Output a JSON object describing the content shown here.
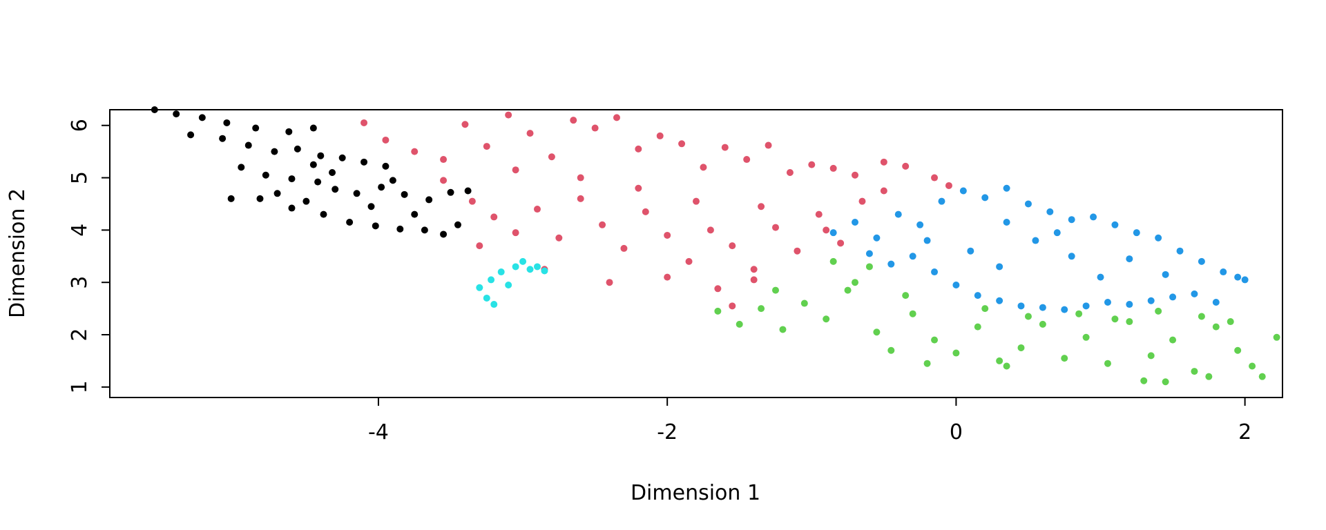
{
  "chart_data": {
    "type": "scatter",
    "title": "",
    "xlabel": "Dimension 1",
    "ylabel": "Dimension 2",
    "xlim": [
      -5.86,
      2.26
    ],
    "ylim": [
      0.8,
      6.3
    ],
    "x_ticks": [
      -4,
      -2,
      0,
      2
    ],
    "x_tick_labels": [
      "-4",
      "-2",
      "0",
      "2"
    ],
    "y_ticks": [
      1,
      2,
      3,
      4,
      5,
      6
    ],
    "y_tick_labels": [
      "1",
      "2",
      "3",
      "4",
      "5",
      "6"
    ],
    "grid": false,
    "legend": "none",
    "series": [
      {
        "color": "#000000",
        "points": [
          [
            -5.55,
            6.3
          ],
          [
            -5.4,
            6.22
          ],
          [
            -5.22,
            6.15
          ],
          [
            -5.05,
            6.05
          ],
          [
            -4.85,
            5.95
          ],
          [
            -4.62,
            5.88
          ],
          [
            -4.45,
            5.95
          ],
          [
            -5.3,
            5.82
          ],
          [
            -5.08,
            5.75
          ],
          [
            -4.9,
            5.62
          ],
          [
            -4.72,
            5.5
          ],
          [
            -4.56,
            5.55
          ],
          [
            -4.4,
            5.42
          ],
          [
            -4.25,
            5.38
          ],
          [
            -4.1,
            5.3
          ],
          [
            -3.95,
            5.22
          ],
          [
            -4.95,
            5.2
          ],
          [
            -4.78,
            5.05
          ],
          [
            -4.6,
            4.98
          ],
          [
            -4.42,
            4.92
          ],
          [
            -4.3,
            4.78
          ],
          [
            -4.15,
            4.7
          ],
          [
            -3.98,
            4.82
          ],
          [
            -3.82,
            4.68
          ],
          [
            -3.65,
            4.58
          ],
          [
            -3.5,
            4.72
          ],
          [
            -3.38,
            4.75
          ],
          [
            -4.82,
            4.6
          ],
          [
            -4.6,
            4.42
          ],
          [
            -4.38,
            4.3
          ],
          [
            -4.2,
            4.15
          ],
          [
            -4.02,
            4.08
          ],
          [
            -3.85,
            4.02
          ],
          [
            -3.68,
            4.0
          ],
          [
            -3.55,
            3.92
          ],
          [
            -3.45,
            4.1
          ],
          [
            -5.02,
            4.6
          ],
          [
            -4.7,
            4.7
          ],
          [
            -4.5,
            4.55
          ],
          [
            -4.05,
            4.45
          ],
          [
            -3.75,
            4.3
          ],
          [
            -4.32,
            5.1
          ],
          [
            -4.45,
            5.25
          ],
          [
            -3.9,
            4.95
          ]
        ]
      },
      {
        "color": "#df536b",
        "points": [
          [
            -4.1,
            6.05
          ],
          [
            -3.95,
            5.72
          ],
          [
            -3.75,
            5.5
          ],
          [
            -3.55,
            5.35
          ],
          [
            -3.4,
            6.02
          ],
          [
            -3.25,
            5.6
          ],
          [
            -3.1,
            6.2
          ],
          [
            -2.95,
            5.85
          ],
          [
            -2.8,
            5.4
          ],
          [
            -2.65,
            6.1
          ],
          [
            -2.5,
            5.95
          ],
          [
            -2.35,
            6.15
          ],
          [
            -2.2,
            5.55
          ],
          [
            -2.05,
            5.8
          ],
          [
            -1.9,
            5.65
          ],
          [
            -1.75,
            5.2
          ],
          [
            -1.6,
            5.58
          ],
          [
            -1.45,
            5.35
          ],
          [
            -1.3,
            5.62
          ],
          [
            -1.15,
            5.1
          ],
          [
            -1.0,
            5.25
          ],
          [
            -0.85,
            5.18
          ],
          [
            -0.7,
            5.05
          ],
          [
            -0.5,
            5.3
          ],
          [
            -0.35,
            5.22
          ],
          [
            -0.15,
            5.0
          ],
          [
            -0.05,
            4.85
          ],
          [
            -3.35,
            4.55
          ],
          [
            -3.2,
            4.25
          ],
          [
            -3.05,
            3.95
          ],
          [
            -2.9,
            4.4
          ],
          [
            -2.75,
            3.85
          ],
          [
            -2.6,
            4.6
          ],
          [
            -2.45,
            4.1
          ],
          [
            -2.3,
            3.65
          ],
          [
            -2.15,
            4.35
          ],
          [
            -2.0,
            3.9
          ],
          [
            -1.85,
            3.4
          ],
          [
            -1.7,
            4.0
          ],
          [
            -1.55,
            3.7
          ],
          [
            -1.4,
            3.25
          ],
          [
            -1.25,
            4.05
          ],
          [
            -1.1,
            3.6
          ],
          [
            -0.95,
            4.3
          ],
          [
            -0.8,
            3.75
          ],
          [
            -0.65,
            4.55
          ],
          [
            -0.5,
            4.75
          ],
          [
            -3.3,
            3.7
          ],
          [
            -2.85,
            3.25
          ],
          [
            -2.4,
            3.0
          ],
          [
            -2.0,
            3.1
          ],
          [
            -1.65,
            2.88
          ],
          [
            -1.55,
            2.55
          ],
          [
            -1.4,
            3.05
          ],
          [
            -3.55,
            4.95
          ],
          [
            -3.05,
            5.15
          ],
          [
            -2.6,
            5.0
          ],
          [
            -2.2,
            4.8
          ],
          [
            -1.8,
            4.55
          ],
          [
            -1.35,
            4.45
          ],
          [
            -0.9,
            4.0
          ]
        ]
      },
      {
        "color": "#2297e6",
        "points": [
          [
            -0.85,
            3.95
          ],
          [
            -0.7,
            4.15
          ],
          [
            -0.55,
            3.85
          ],
          [
            -0.4,
            4.3
          ],
          [
            -0.25,
            4.1
          ],
          [
            -0.1,
            4.55
          ],
          [
            0.05,
            4.75
          ],
          [
            0.2,
            4.62
          ],
          [
            0.35,
            4.8
          ],
          [
            0.5,
            4.5
          ],
          [
            0.65,
            4.35
          ],
          [
            0.8,
            4.2
          ],
          [
            0.95,
            4.25
          ],
          [
            1.1,
            4.1
          ],
          [
            1.25,
            3.95
          ],
          [
            1.4,
            3.85
          ],
          [
            1.55,
            3.6
          ],
          [
            1.7,
            3.4
          ],
          [
            1.85,
            3.2
          ],
          [
            1.95,
            3.1
          ],
          [
            2.0,
            3.05
          ],
          [
            -0.6,
            3.55
          ],
          [
            -0.45,
            3.35
          ],
          [
            -0.3,
            3.5
          ],
          [
            -0.15,
            3.2
          ],
          [
            0.0,
            2.95
          ],
          [
            0.15,
            2.75
          ],
          [
            0.3,
            2.65
          ],
          [
            0.45,
            2.55
          ],
          [
            0.6,
            2.52
          ],
          [
            0.75,
            2.48
          ],
          [
            0.9,
            2.55
          ],
          [
            1.05,
            2.62
          ],
          [
            1.2,
            2.58
          ],
          [
            1.35,
            2.65
          ],
          [
            1.5,
            2.72
          ],
          [
            1.65,
            2.78
          ],
          [
            1.8,
            2.62
          ],
          [
            0.1,
            3.6
          ],
          [
            0.3,
            3.3
          ],
          [
            0.55,
            3.8
          ],
          [
            0.8,
            3.5
          ],
          [
            1.0,
            3.1
          ],
          [
            1.2,
            3.45
          ],
          [
            1.45,
            3.15
          ],
          [
            0.35,
            4.15
          ],
          [
            0.7,
            3.95
          ],
          [
            -0.2,
            3.8
          ]
        ]
      },
      {
        "color": "#61d04f",
        "points": [
          [
            -1.65,
            2.45
          ],
          [
            -1.5,
            2.2
          ],
          [
            -1.35,
            2.5
          ],
          [
            -1.2,
            2.1
          ],
          [
            -1.05,
            2.6
          ],
          [
            -0.9,
            2.3
          ],
          [
            -0.75,
            2.85
          ],
          [
            -0.6,
            3.3
          ],
          [
            -0.55,
            2.05
          ],
          [
            -0.45,
            1.7
          ],
          [
            -0.3,
            2.4
          ],
          [
            -0.15,
            1.9
          ],
          [
            0.0,
            1.65
          ],
          [
            0.15,
            2.15
          ],
          [
            0.3,
            1.5
          ],
          [
            0.45,
            1.75
          ],
          [
            0.6,
            2.2
          ],
          [
            0.75,
            1.55
          ],
          [
            0.9,
            1.95
          ],
          [
            1.05,
            1.45
          ],
          [
            1.2,
            2.25
          ],
          [
            1.35,
            1.6
          ],
          [
            1.5,
            1.9
          ],
          [
            1.65,
            1.3
          ],
          [
            1.8,
            2.15
          ],
          [
            1.95,
            1.7
          ],
          [
            2.05,
            1.4
          ],
          [
            2.12,
            1.2
          ],
          [
            2.22,
            1.95
          ],
          [
            -0.85,
            3.4
          ],
          [
            -0.7,
            3.0
          ],
          [
            -1.25,
            2.85
          ],
          [
            -0.35,
            2.75
          ],
          [
            0.2,
            2.5
          ],
          [
            0.5,
            2.35
          ],
          [
            0.85,
            2.4
          ],
          [
            1.1,
            2.3
          ],
          [
            1.4,
            2.45
          ],
          [
            1.7,
            2.35
          ],
          [
            1.9,
            2.25
          ],
          [
            -0.2,
            1.45
          ],
          [
            0.35,
            1.4
          ],
          [
            1.45,
            1.1
          ],
          [
            1.75,
            1.2
          ],
          [
            1.3,
            1.12
          ]
        ]
      },
      {
        "color": "#28e2e5",
        "points": [
          [
            -3.3,
            2.9
          ],
          [
            -3.25,
            2.7
          ],
          [
            -3.2,
            2.58
          ],
          [
            -3.15,
            3.2
          ],
          [
            -3.1,
            2.95
          ],
          [
            -3.05,
            3.3
          ],
          [
            -3.0,
            3.4
          ],
          [
            -2.95,
            3.25
          ],
          [
            -2.9,
            3.3
          ],
          [
            -2.85,
            3.22
          ],
          [
            -3.22,
            3.05
          ]
        ]
      }
    ]
  }
}
